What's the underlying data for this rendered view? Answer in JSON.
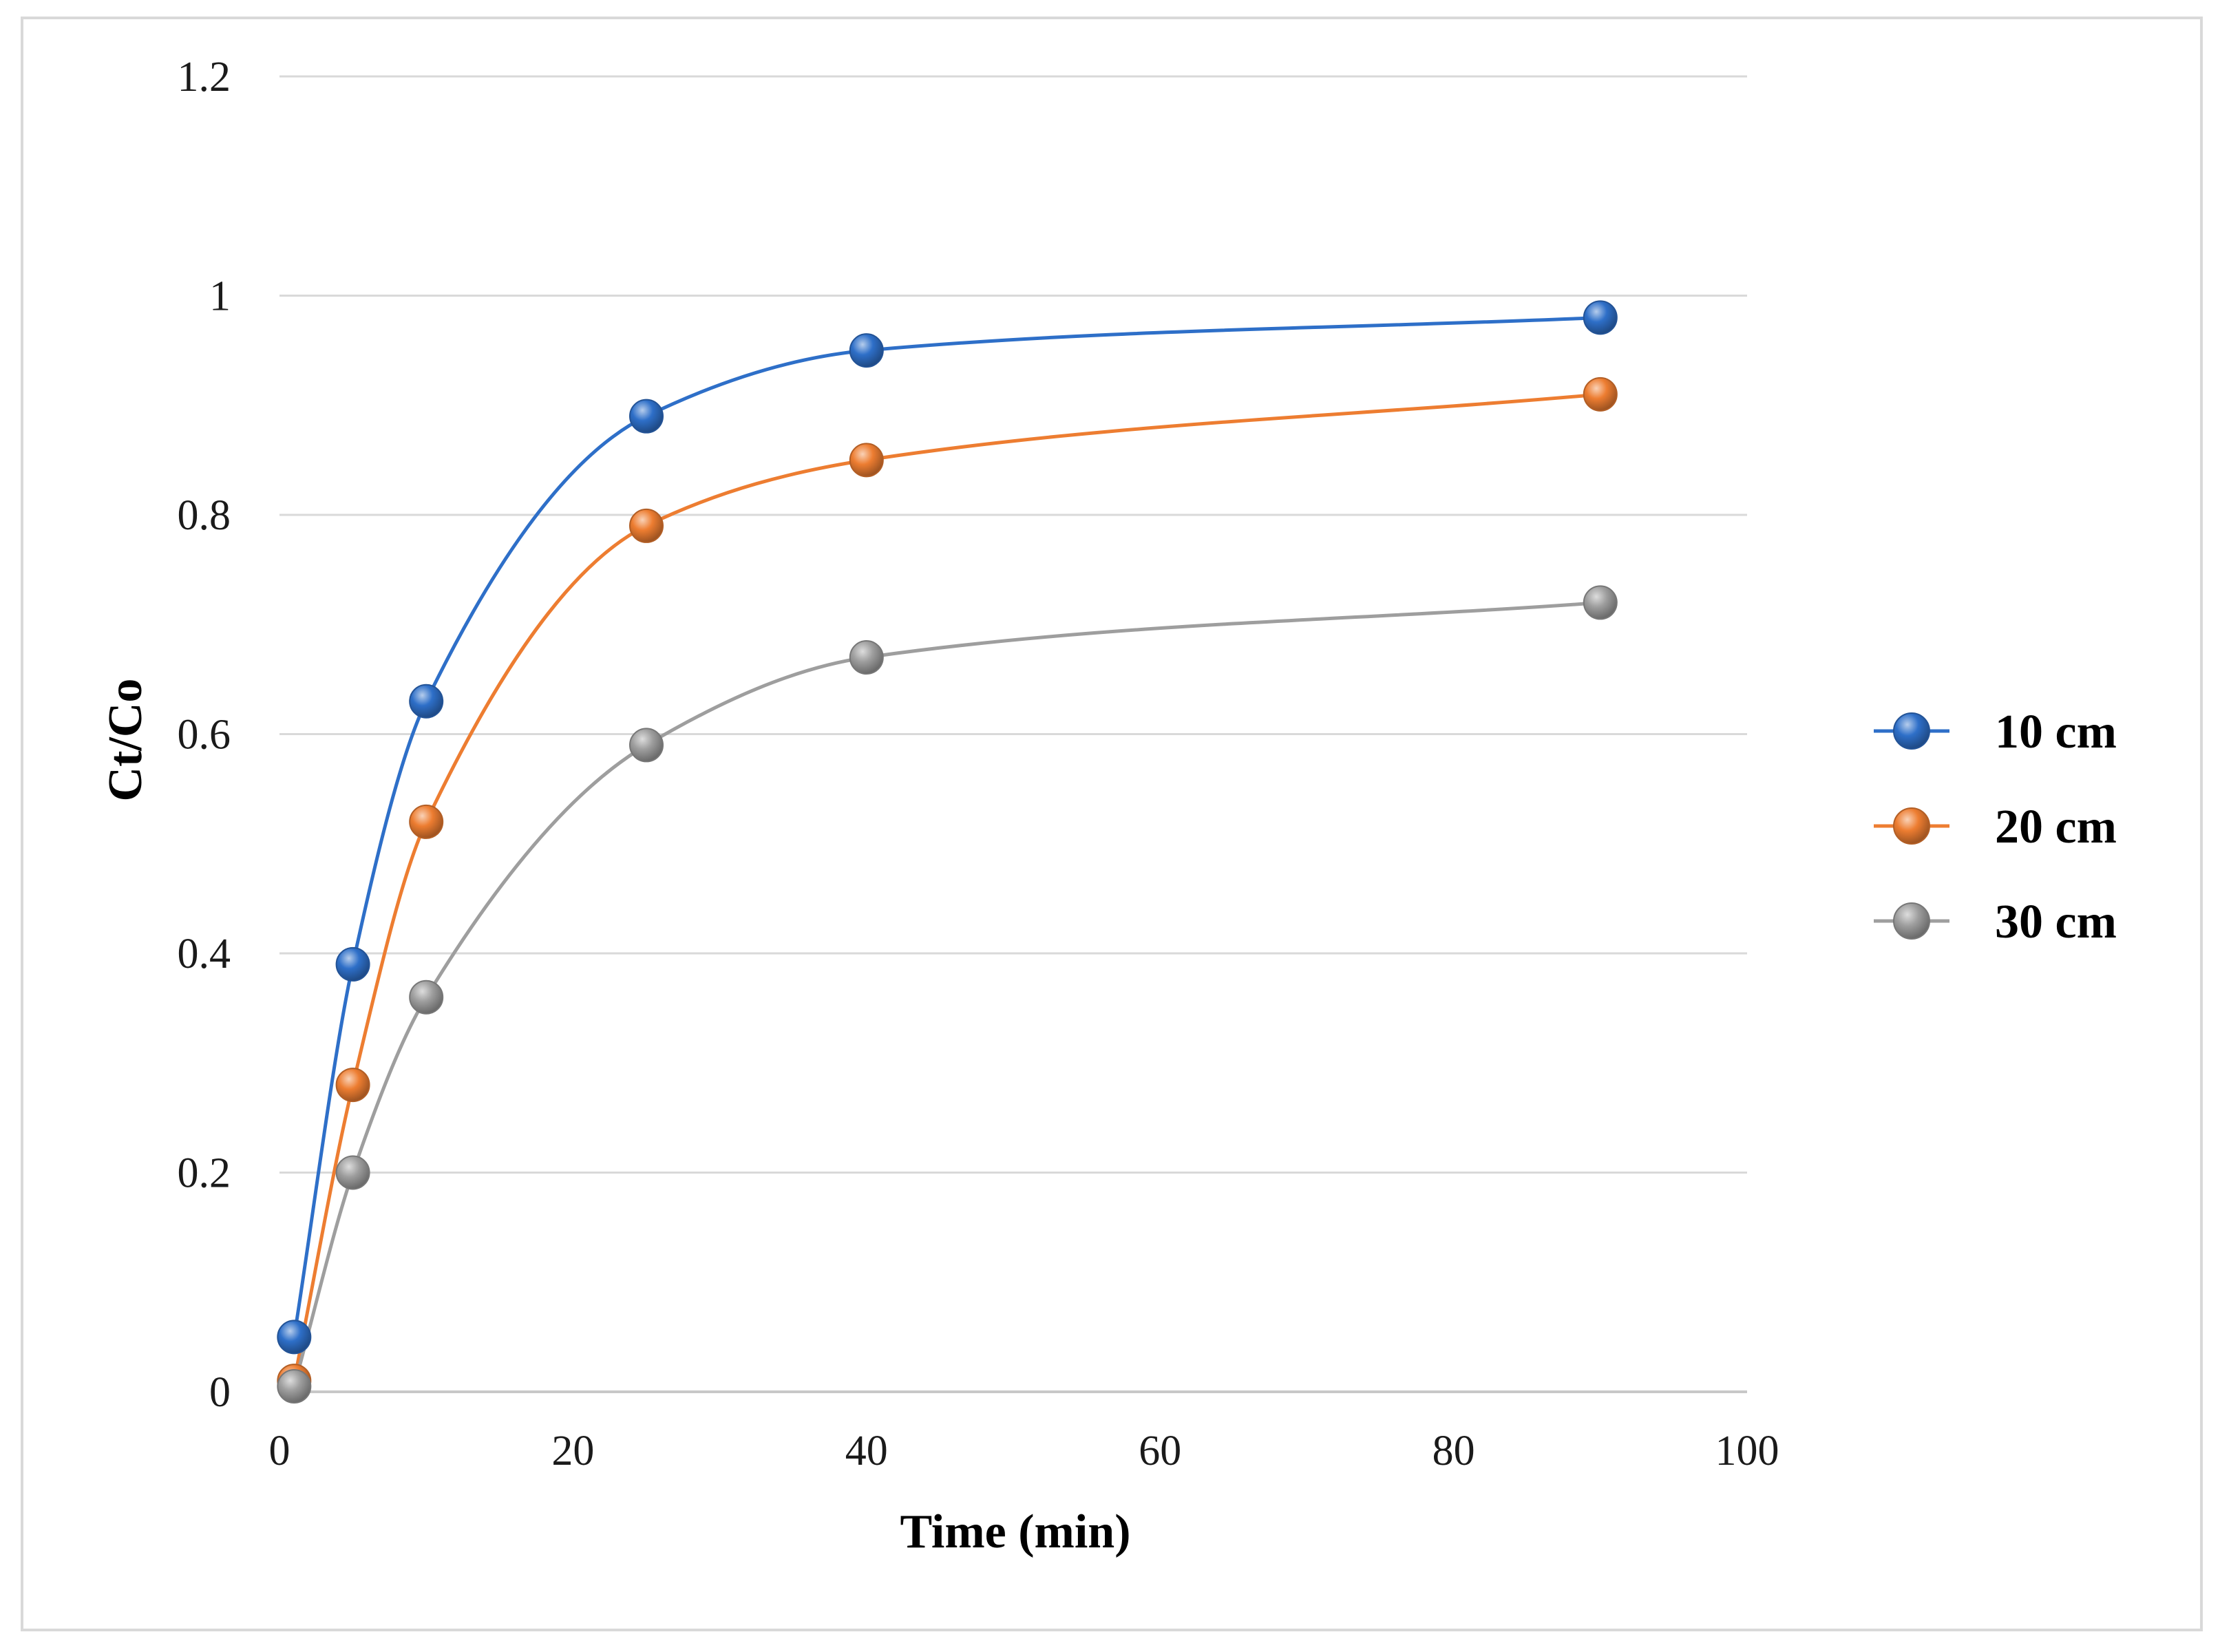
{
  "chart_data": {
    "type": "line",
    "title": "",
    "xlabel": "Time (min)",
    "ylabel": "Ct/Co",
    "xlim": [
      0,
      100
    ],
    "ylim": [
      0,
      1.2
    ],
    "xticks": [
      0,
      20,
      40,
      60,
      80,
      100
    ],
    "yticks": [
      0,
      0.2,
      0.4,
      0.6,
      0.8,
      1,
      1.2
    ],
    "xtick_labels": [
      "0",
      "20",
      "40",
      "60",
      "80",
      "100"
    ],
    "ytick_labels": [
      "0",
      "0.2",
      "0.4",
      "0.6",
      "0.8",
      "1",
      "1.2"
    ],
    "grid": "horizontal",
    "legend_position": "right",
    "x": [
      1,
      5,
      10,
      25,
      40,
      90
    ],
    "series": [
      {
        "name": "10 cm",
        "color": "#2E6FC8",
        "values": [
          0.05,
          0.39,
          0.63,
          0.89,
          0.95,
          0.98
        ]
      },
      {
        "name": "20 cm",
        "color": "#ED7D31",
        "values": [
          0.01,
          0.28,
          0.52,
          0.79,
          0.85,
          0.91
        ]
      },
      {
        "name": "30 cm",
        "color": "#9E9E9E",
        "values": [
          0.005,
          0.2,
          0.36,
          0.59,
          0.67,
          0.72
        ]
      }
    ]
  }
}
